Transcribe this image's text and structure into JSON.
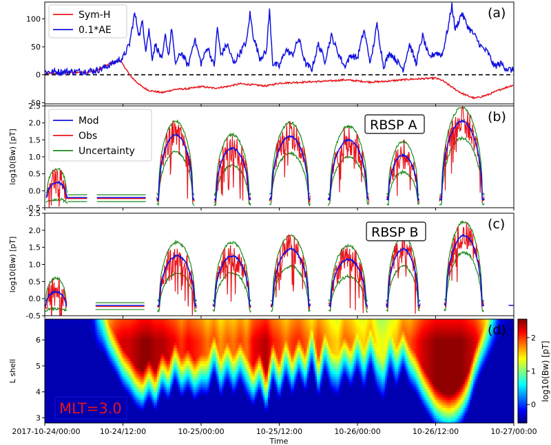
{
  "chart_data": {
    "type": "line",
    "x_axis": {
      "label": "Time",
      "range_hours": [
        0,
        72
      ],
      "ticks": [
        {
          "h": 0,
          "label": "2017-10-24/00:00"
        },
        {
          "h": 12,
          "label": "10-24/12:00"
        },
        {
          "h": 24,
          "label": "10-25/00:00"
        },
        {
          "h": 36,
          "label": "10-25/12:00"
        },
        {
          "h": 48,
          "label": "10-26/00:00"
        },
        {
          "h": 60,
          "label": "10-26/12:00"
        },
        {
          "h": 72,
          "label": "10-27/00:00"
        }
      ]
    },
    "panels": [
      {
        "id": "a",
        "panel_label": "(a)",
        "ylim": [
          -52,
          130
        ],
        "yticks": [
          -50,
          0,
          50,
          100
        ],
        "zero_line": true,
        "legend": [
          "Sym-H",
          "0.1*AE"
        ],
        "series": [
          {
            "name": "Sym-H",
            "color": "#e8141a",
            "t": [
              0,
              4,
              7,
              8,
              9,
              10,
              11,
              11.5,
              12,
              12.5,
              13,
              14,
              15,
              16,
              17,
              18,
              20,
              22,
              24,
              26,
              28,
              30,
              32,
              34,
              36,
              38,
              40,
              42,
              44,
              46,
              48,
              50,
              52,
              54,
              56,
              58,
              60,
              61,
              62,
              63,
              64,
              65,
              66,
              68,
              70,
              72
            ],
            "v": [
              2,
              4,
              5,
              8,
              14,
              20,
              24,
              26,
              18,
              10,
              0,
              -12,
              -22,
              -28,
              -30,
              -32,
              -26,
              -25,
              -21,
              -24,
              -21,
              -16,
              -18,
              -20,
              -15,
              -14,
              -13,
              -12,
              -11,
              -9,
              -11,
              -13,
              -12,
              -10,
              -8,
              -7,
              -6,
              -10,
              -18,
              -26,
              -33,
              -38,
              -42,
              -36,
              -26,
              -18
            ]
          },
          {
            "name": "0.1*AE",
            "color": "#1010e0",
            "t": [
              0,
              6,
              8,
              9,
              10,
              11,
              12,
              13,
              13.8,
              14.5,
              15,
              15.5,
              16,
              16.5,
              17,
              18,
              18.5,
              19,
              19.5,
              20,
              21,
              22,
              23,
              24,
              25,
              26,
              26.5,
              27,
              28,
              29,
              30,
              31,
              31.5,
              32,
              33,
              34,
              34.5,
              35,
              36,
              37,
              38,
              39,
              40,
              41,
              42,
              43,
              44,
              45,
              46,
              47,
              48,
              49,
              50,
              51,
              52,
              53,
              54,
              55,
              56,
              57,
              58,
              59,
              60,
              61,
              62,
              62.5,
              63,
              64,
              65,
              66,
              67,
              68,
              69,
              70,
              71,
              72
            ],
            "v": [
              5,
              6,
              8,
              12,
              18,
              24,
              30,
              55,
              110,
              70,
              95,
              45,
              80,
              30,
              55,
              25,
              70,
              35,
              85,
              20,
              40,
              15,
              65,
              20,
              50,
              15,
              85,
              35,
              55,
              20,
              40,
              60,
              110,
              70,
              30,
              40,
              115,
              20,
              15,
              45,
              35,
              65,
              20,
              10,
              55,
              25,
              70,
              40,
              15,
              35,
              30,
              80,
              20,
              90,
              15,
              40,
              25,
              10,
              55,
              20,
              70,
              30,
              40,
              35,
              90,
              125,
              80,
              110,
              85,
              70,
              50,
              40,
              15,
              20,
              10,
              8
            ]
          }
        ]
      },
      {
        "id": "b",
        "panel_label": "(b)",
        "box_label": "RBSP A",
        "ylabel": "log10(Bw) [pT]",
        "ylim": [
          -0.5,
          2.5
        ],
        "yticks": [
          -0.5,
          0.0,
          0.5,
          1.0,
          1.5,
          2.0,
          2.5
        ],
        "legend": [
          "Mod",
          "Obs",
          "Uncertainty"
        ],
        "colors": {
          "mod": "#1010e0",
          "obs": "#e8141a",
          "unc": "#1a8a1a"
        },
        "passes": [
          {
            "t0": 0.2,
            "t1": 3.5,
            "base": -0.2,
            "peak": 0.25
          },
          {
            "t0": 17.2,
            "t1": 23.0,
            "base": -0.25,
            "peak": 1.65
          },
          {
            "t0": 26.0,
            "t1": 31.6,
            "base": -0.25,
            "peak": 1.25
          },
          {
            "t0": 34.5,
            "t1": 40.8,
            "base": -0.25,
            "peak": 1.6
          },
          {
            "t0": 43.5,
            "t1": 49.8,
            "base": -0.25,
            "peak": 1.5
          },
          {
            "t0": 52.5,
            "t1": 57.5,
            "base": -0.25,
            "peak": 1.05
          },
          {
            "t0": 60.6,
            "t1": 67.5,
            "base": -0.25,
            "peak": 2.05
          }
        ],
        "flat_segments": [
          {
            "t0": 3.5,
            "t1": 6.5,
            "v": -0.2
          },
          {
            "t0": 8.0,
            "t1": 15.5,
            "v": -0.2
          }
        ]
      },
      {
        "id": "c",
        "panel_label": "(c)",
        "box_label": "RBSP B",
        "ylabel": "log10(Bw) [pT]",
        "ylim": [
          -0.5,
          2.5
        ],
        "yticks": [
          -0.5,
          0.0,
          0.5,
          1.0,
          1.5,
          2.0,
          2.5
        ],
        "colors": {
          "mod": "#1010e0",
          "obs": "#e8141a",
          "unc": "#1a8a1a"
        },
        "passes": [
          {
            "t0": 0.0,
            "t1": 3.4,
            "base": -0.2,
            "peak": 0.2
          },
          {
            "t0": 17.3,
            "t1": 23.3,
            "base": -0.2,
            "peak": 1.25
          },
          {
            "t0": 25.8,
            "t1": 31.7,
            "base": -0.2,
            "peak": 1.25
          },
          {
            "t0": 34.7,
            "t1": 40.8,
            "base": -0.2,
            "peak": 1.45
          },
          {
            "t0": 43.6,
            "t1": 49.6,
            "base": -0.2,
            "peak": 1.15
          },
          {
            "t0": 52.4,
            "t1": 57.6,
            "base": -0.2,
            "peak": 1.45
          },
          {
            "t0": 61.3,
            "t1": 67.4,
            "base": -0.2,
            "peak": 1.85
          }
        ],
        "flat_segments": [
          {
            "t0": 7.8,
            "t1": 15.3,
            "v": -0.2
          }
        ],
        "tail": {
          "t0": 71.2,
          "t1": 72,
          "v": -0.2
        }
      },
      {
        "id": "d",
        "panel_label": "(d)",
        "type": "heatmap",
        "ylabel": "L shell",
        "ylim": [
          2.8,
          6.8
        ],
        "yticks": [
          3,
          4,
          5,
          6
        ],
        "annotation": "MLT=3.0",
        "colorbar": {
          "label": "log10(Bw) [pT]",
          "range": [
            -0.55,
            2.55
          ],
          "ticks": [
            0,
            1,
            2
          ],
          "colormap": "jet"
        },
        "edge_curve": {
          "t": [
            0,
            4,
            6,
            7.5,
            8,
            9,
            10,
            11,
            12,
            13,
            14,
            15,
            16,
            17,
            18,
            19,
            20,
            21,
            22,
            23,
            24,
            25,
            26,
            27,
            28,
            29,
            30,
            31,
            32,
            33,
            34,
            35,
            36,
            37,
            38,
            39,
            40,
            41,
            42,
            43,
            44,
            45,
            46,
            47,
            48,
            49,
            50,
            51,
            52,
            53,
            54,
            55,
            56,
            57,
            58,
            59,
            60,
            61,
            62,
            63,
            64,
            65,
            66,
            67,
            68,
            69,
            70,
            71,
            72
          ],
          "L": [
            7,
            7,
            6.9,
            6.7,
            6.3,
            6.1,
            5.6,
            5.2,
            4.7,
            4.4,
            4.0,
            3.8,
            4.3,
            3.8,
            4.6,
            4.2,
            5.0,
            4.3,
            4.7,
            4.2,
            4.5,
            4.4,
            5.3,
            4.3,
            5.0,
            4.4,
            5.0,
            4.4,
            4.0,
            4.6,
            3.7,
            5.0,
            4.2,
            5.1,
            4.4,
            5.2,
            4.5,
            5.6,
            4.3,
            5.4,
            4.6,
            4.4,
            5.2,
            4.7,
            5.4,
            4.6,
            5.6,
            4.6,
            4.2,
            5.4,
            4.7,
            5.5,
            4.8,
            4.5,
            4.0,
            3.6,
            3.2,
            3.0,
            2.9,
            3.0,
            3.3,
            3.8,
            4.7,
            5.3,
            5.8,
            6.3,
            6.9,
            7,
            7
          ]
        },
        "intensity": {
          "t": [
            0,
            7,
            8,
            9,
            10,
            11,
            12,
            13,
            14,
            15,
            16,
            17,
            18,
            19,
            20,
            21,
            22,
            23,
            24,
            25,
            26,
            27,
            28,
            29,
            30,
            31,
            32,
            33,
            34,
            35,
            36,
            37,
            38,
            39,
            40,
            41,
            42,
            43,
            44,
            45,
            46,
            47,
            48,
            49,
            50,
            51,
            52,
            53,
            54,
            55,
            56,
            57,
            58,
            59,
            60,
            61,
            62,
            63,
            64,
            65,
            66,
            67,
            68,
            69,
            70,
            71,
            72
          ],
          "v": [
            -0.3,
            -0.3,
            0.8,
            1.6,
            2.0,
            2.2,
            2.3,
            2.3,
            2.4,
            2.5,
            2.5,
            2.4,
            2.4,
            2.3,
            2.2,
            2.0,
            2.2,
            2.1,
            2.0,
            1.8,
            2.0,
            1.7,
            1.9,
            1.8,
            2.0,
            1.8,
            2.2,
            2.3,
            2.4,
            2.1,
            2.0,
            1.8,
            2.0,
            2.1,
            1.9,
            1.7,
            2.0,
            1.8,
            1.6,
            1.5,
            1.9,
            1.8,
            1.6,
            1.5,
            1.8,
            1.4,
            1.3,
            1.5,
            1.6,
            2.0,
            1.9,
            2.1,
            2.3,
            2.4,
            2.5,
            2.5,
            2.5,
            2.5,
            2.5,
            2.4,
            2.3,
            2.0,
            1.6,
            1.0,
            0.3,
            -0.2,
            -0.3
          ]
        }
      }
    ]
  }
}
